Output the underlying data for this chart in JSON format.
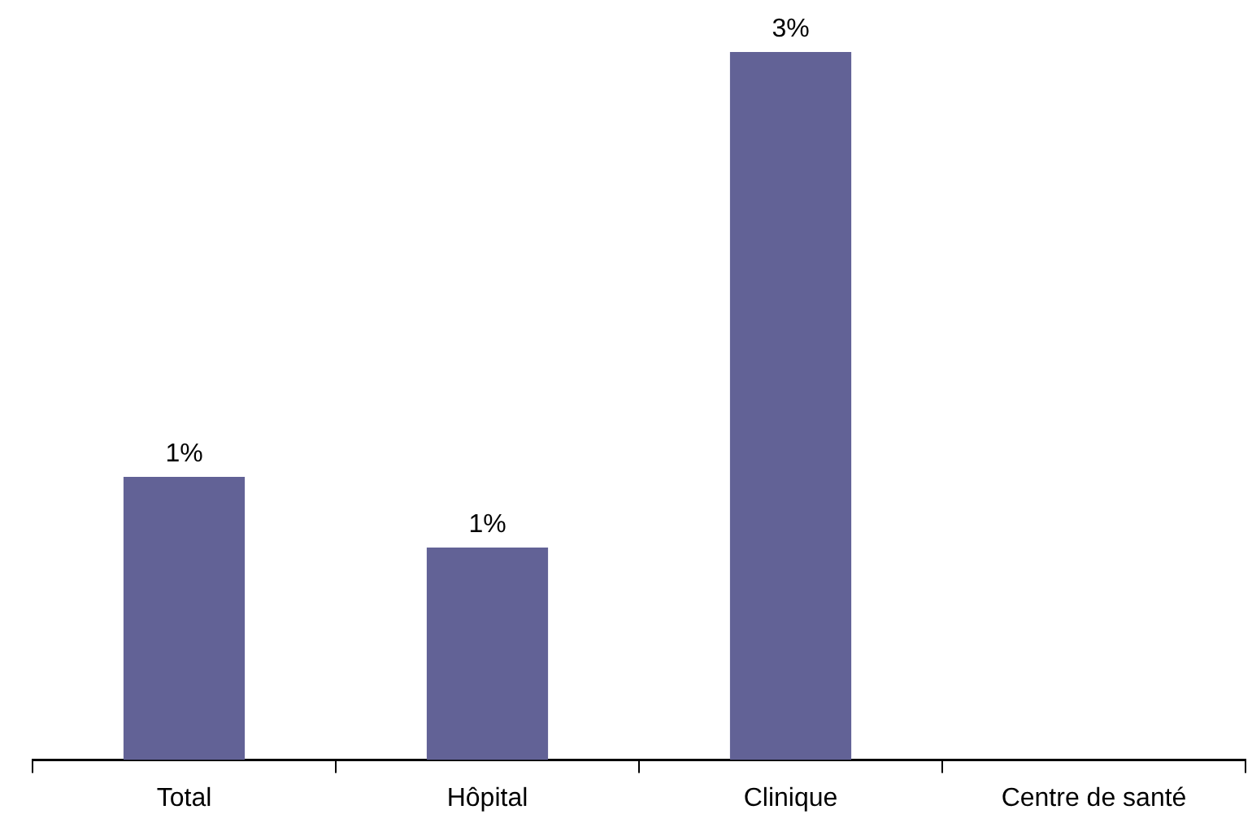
{
  "chart_data": {
    "type": "bar",
    "tick_labels": "x",
    "categories": [
      "Total",
      "Hôpital",
      "Clinique",
      "Centre de santé"
    ],
    "values": [
      1.2,
      0.9,
      3,
      0
    ],
    "value_labels": [
      "1%",
      "1%",
      "3%",
      null
    ],
    "color": "#626296"
  }
}
